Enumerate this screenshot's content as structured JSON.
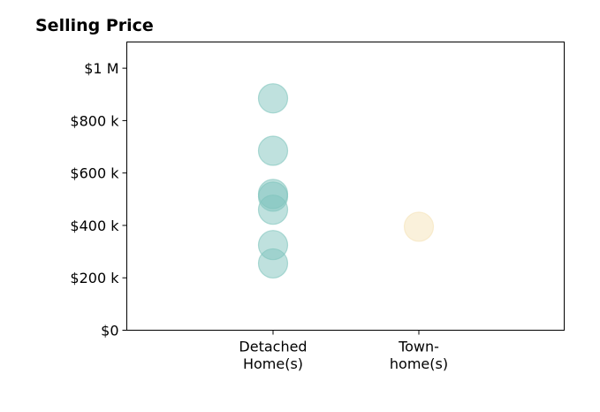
{
  "chart_data": {
    "type": "scatter",
    "title": "Selling Price",
    "xlabel": "",
    "ylabel": "",
    "categories": [
      [
        "Detached",
        "Home(s)"
      ],
      [
        "Town-",
        "home(s)"
      ]
    ],
    "y_ticks": [
      {
        "value": 0,
        "label": "$0"
      },
      {
        "value": 200000,
        "label": "$200 k"
      },
      {
        "value": 400000,
        "label": "$400 k"
      },
      {
        "value": 600000,
        "label": "$600 k"
      },
      {
        "value": 800000,
        "label": "$800 k"
      },
      {
        "value": 1000000,
        "label": "$1 M"
      }
    ],
    "ylim": [
      0,
      1100000
    ],
    "grid": false,
    "series": [
      {
        "category_index": 0,
        "color": "#7fc4bd",
        "values": [
          885000,
          685000,
          520000,
          510000,
          460000,
          325000,
          255000
        ]
      },
      {
        "category_index": 1,
        "color": "#f5e3b8",
        "values": [
          395000
        ]
      }
    ]
  }
}
